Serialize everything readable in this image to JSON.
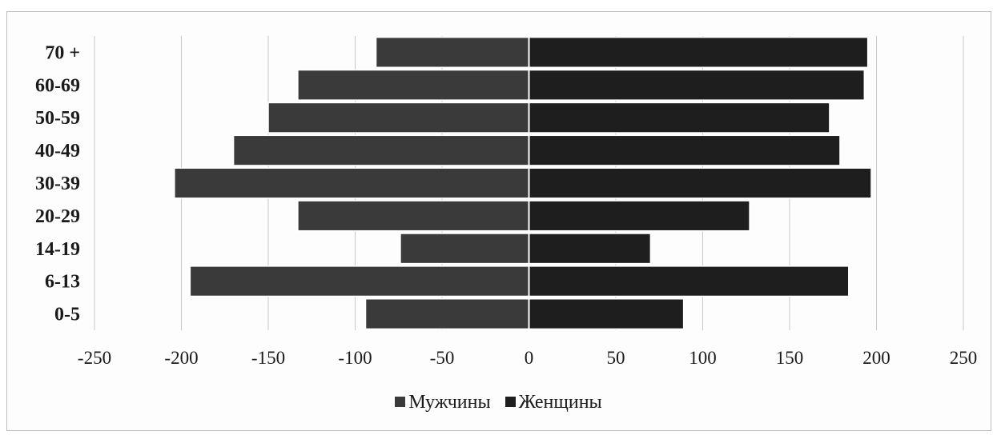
{
  "chart_data": {
    "type": "bar",
    "orientation": "horizontal",
    "stacked": true,
    "categories": [
      "70 +",
      "60-69",
      "50-59",
      "40-49",
      "30-39",
      "20-29",
      "14-19",
      "6-13",
      "0-5"
    ],
    "series": [
      {
        "name": "Мужчины",
        "values": [
          -88,
          -133,
          -150,
          -170,
          -204,
          -133,
          -74,
          -195,
          -94
        ],
        "color": "#3a3a3a"
      },
      {
        "name": "Женщины",
        "values": [
          195,
          193,
          173,
          179,
          197,
          127,
          70,
          184,
          89
        ],
        "color": "#1e1e1e"
      }
    ],
    "xlim": [
      -250,
      250
    ],
    "xticks": [
      "-250",
      "-200",
      "-150",
      "-100",
      "-50",
      "0",
      "50",
      "100",
      "150",
      "200",
      "250"
    ],
    "grid": true,
    "legend": "bottom"
  }
}
